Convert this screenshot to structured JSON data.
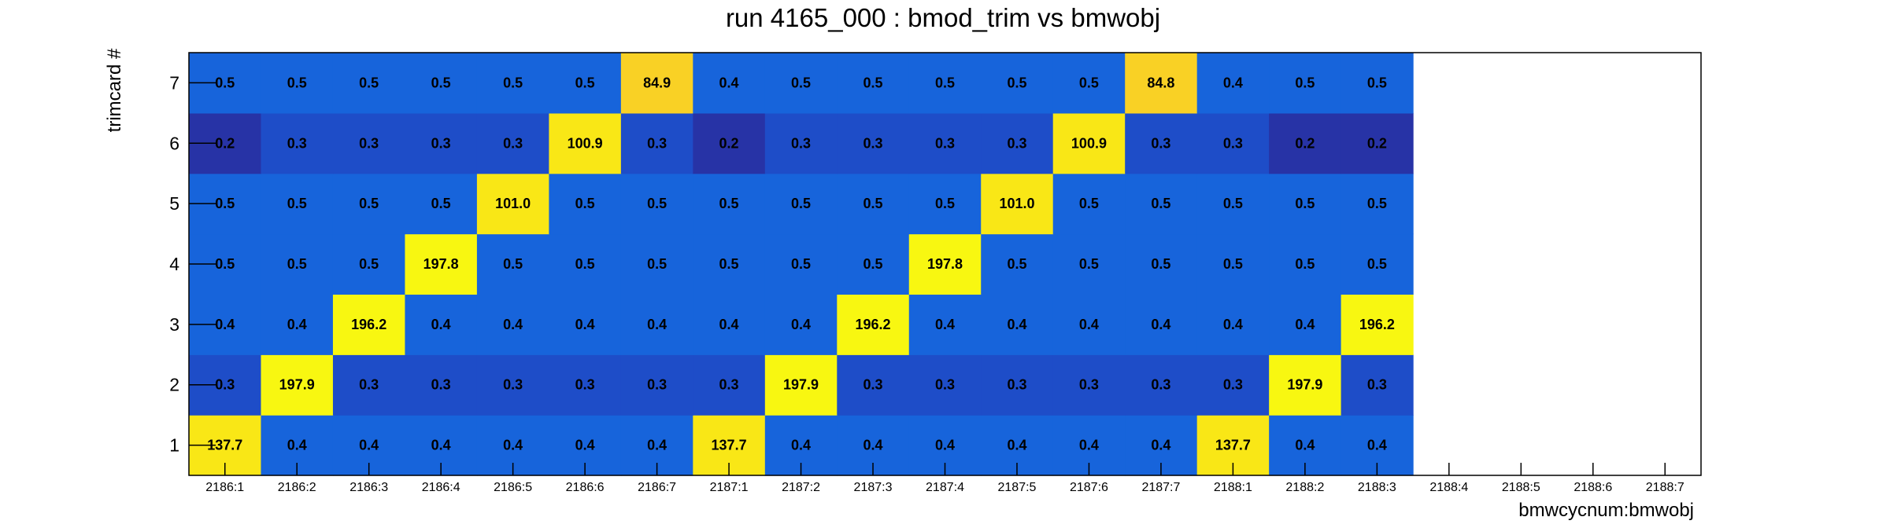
{
  "chart_data": {
    "type": "heatmap",
    "title": "run 4165_000 : bmod_trim vs bmwobj",
    "xlabel": "bmwcycnum:bmwobj",
    "ylabel": "trimcard #",
    "x_categories": [
      "2186:1",
      "2186:2",
      "2186:3",
      "2186:4",
      "2186:5",
      "2186:6",
      "2186:7",
      "2187:1",
      "2187:2",
      "2187:3",
      "2187:4",
      "2187:5",
      "2187:6",
      "2187:7",
      "2188:1",
      "2188:2",
      "2188:3",
      "2188:4",
      "2188:5",
      "2188:6",
      "2188:7"
    ],
    "y_categories": [
      "1",
      "2",
      "3",
      "4",
      "5",
      "6",
      "7"
    ],
    "values": [
      [
        "137.7",
        "0.4",
        "0.4",
        "0.4",
        "0.4",
        "0.4",
        "0.4",
        "137.7",
        "0.4",
        "0.4",
        "0.4",
        "0.4",
        "0.4",
        "0.4",
        "137.7",
        "0.4",
        "0.4",
        null,
        null,
        null,
        null
      ],
      [
        "0.3",
        "197.9",
        "0.3",
        "0.3",
        "0.3",
        "0.3",
        "0.3",
        "0.3",
        "197.9",
        "0.3",
        "0.3",
        "0.3",
        "0.3",
        "0.3",
        "0.3",
        "197.9",
        "0.3",
        null,
        null,
        null,
        null
      ],
      [
        "0.4",
        "0.4",
        "196.2",
        "0.4",
        "0.4",
        "0.4",
        "0.4",
        "0.4",
        "0.4",
        "196.2",
        "0.4",
        "0.4",
        "0.4",
        "0.4",
        "0.4",
        "0.4",
        "196.2",
        null,
        null,
        null,
        null
      ],
      [
        "0.5",
        "0.5",
        "0.5",
        "197.8",
        "0.5",
        "0.5",
        "0.5",
        "0.5",
        "0.5",
        "0.5",
        "197.8",
        "0.5",
        "0.5",
        "0.5",
        "0.5",
        "0.5",
        "0.5",
        null,
        null,
        null,
        null
      ],
      [
        "0.5",
        "0.5",
        "0.5",
        "0.5",
        "101.0",
        "0.5",
        "0.5",
        "0.5",
        "0.5",
        "0.5",
        "0.5",
        "101.0",
        "0.5",
        "0.5",
        "0.5",
        "0.5",
        "0.5",
        null,
        null,
        null,
        null
      ],
      [
        "0.2",
        "0.3",
        "0.3",
        "0.3",
        "0.3",
        "100.9",
        "0.3",
        "0.2",
        "0.3",
        "0.3",
        "0.3",
        "0.3",
        "100.9",
        "0.3",
        "0.3",
        "0.2",
        "0.2",
        null,
        null,
        null,
        null
      ],
      [
        "0.5",
        "0.5",
        "0.5",
        "0.5",
        "0.5",
        "0.5",
        "84.9",
        "0.4",
        "0.5",
        "0.5",
        "0.5",
        "0.5",
        "0.5",
        "84.8",
        "0.4",
        "0.5",
        "0.5",
        null,
        null,
        null,
        null
      ]
    ],
    "colors": {
      "low_dark": "#2733a6",
      "low_mid": "#1e4dc8",
      "low": "#1764db",
      "high": "#f8f711",
      "mid_high": "#f9d125",
      "bright": "#f9e716",
      "frame": "#000000",
      "background": "#ffffff"
    },
    "grid": false,
    "legend": "none"
  }
}
